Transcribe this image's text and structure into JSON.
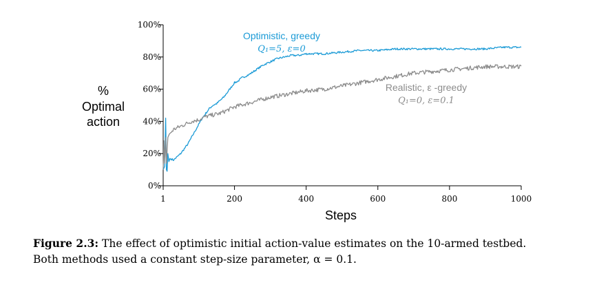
{
  "chart_data": {
    "type": "line",
    "title": "",
    "xlabel": "Steps",
    "ylabel_lines": [
      "%",
      "Optimal",
      "action"
    ],
    "xlim": [
      1,
      1000
    ],
    "ylim": [
      0,
      100
    ],
    "xticks": [
      1,
      200,
      400,
      600,
      800,
      1000
    ],
    "xtick_labels": [
      "1",
      "200",
      "400",
      "600",
      "800",
      "1000"
    ],
    "yticks": [
      0,
      20,
      40,
      60,
      80,
      100
    ],
    "ytick_labels": [
      "0%",
      "20%",
      "40%",
      "60%",
      "80%",
      "100%"
    ],
    "grid": false,
    "legend": "inline labels",
    "series": [
      {
        "name": "Optimistic, greedy",
        "sublabel": "Q₁=5,  ε=0",
        "color": "#1a9ad6",
        "x": [
          1,
          5,
          8,
          10,
          12,
          14,
          17,
          20,
          30,
          40,
          50,
          60,
          70,
          80,
          90,
          100,
          110,
          120,
          130,
          140,
          150,
          160,
          170,
          180,
          190,
          200,
          210,
          220,
          240,
          260,
          280,
          300,
          320,
          340,
          360,
          380,
          400,
          450,
          500,
          550,
          600,
          650,
          700,
          750,
          800,
          850,
          900,
          950,
          1000
        ],
        "y": [
          10,
          12,
          42,
          10,
          9,
          20,
          15,
          17,
          16,
          18,
          20,
          23,
          26,
          30,
          34,
          38,
          42,
          45,
          48,
          50,
          51,
          53,
          55,
          58,
          61,
          64,
          65,
          67,
          69,
          72,
          75,
          77,
          79,
          80,
          81,
          81,
          82,
          82,
          83,
          84,
          84,
          85,
          85,
          85,
          85,
          85,
          85,
          86,
          86
        ]
      },
      {
        "name": "Realistic, ε -greedy",
        "sublabel": "Q₁=0,  ε=0.1",
        "color": "#8c8c8c",
        "x": [
          1,
          3,
          5,
          8,
          10,
          14,
          18,
          22,
          30,
          40,
          50,
          60,
          80,
          100,
          120,
          140,
          160,
          180,
          200,
          250,
          300,
          350,
          400,
          450,
          500,
          550,
          600,
          650,
          700,
          750,
          800,
          850,
          900,
          950,
          1000
        ],
        "y": [
          10,
          28,
          14,
          30,
          14,
          30,
          32,
          33,
          35,
          36,
          37,
          38,
          40,
          41,
          43,
          44,
          45,
          47,
          49,
          52,
          55,
          57,
          59,
          60,
          62,
          64,
          66,
          68,
          70,
          71,
          72,
          73,
          74,
          74,
          74
        ]
      }
    ]
  },
  "caption": {
    "figure_number": "Figure 2.3:",
    "text_line1": " The effect of optimistic initial action-value estimates on the 10-armed testbed.",
    "text_line2": "Both methods used a constant step-size parameter, α = 0.1."
  }
}
